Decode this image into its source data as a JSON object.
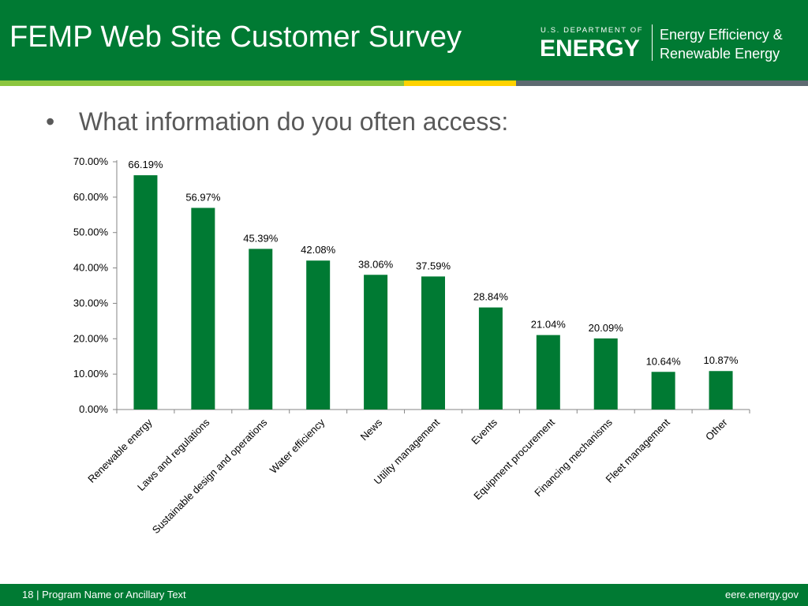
{
  "header": {
    "title": "FEMP Web Site Customer Survey",
    "logo_top_text": "U.S. DEPARTMENT OF",
    "logo_main_text": "ENERGY",
    "office_line1": "Energy Efficiency &",
    "office_line2": "Renewable Energy"
  },
  "slide": {
    "bullet_symbol": "•",
    "bullet_text": "What information do you often access:"
  },
  "footer": {
    "page_number": "18",
    "separator": "|",
    "left_text": "Program Name or Ancillary Text",
    "right_text": "eere.energy.gov"
  },
  "colors": {
    "brand_green": "#007a33",
    "bar_green": "#007a33",
    "stripe_lime": "#8cc63f",
    "stripe_yellow": "#ffd200",
    "stripe_gray": "#5e6a71"
  },
  "chart_data": {
    "type": "bar",
    "categories": [
      "Renewable energy",
      "Laws and regulations",
      "Sustainable design and operations",
      "Water efficiency",
      "News",
      "Utility management",
      "Events",
      "Equipment procurement",
      "Financing mechanisms",
      "Fleet management",
      "Other"
    ],
    "values": [
      66.19,
      56.97,
      45.39,
      42.08,
      38.06,
      37.59,
      28.84,
      21.04,
      20.09,
      10.64,
      10.87
    ],
    "value_labels": [
      "66.19%",
      "56.97%",
      "45.39%",
      "42.08%",
      "38.06%",
      "37.59%",
      "28.84%",
      "21.04%",
      "20.09%",
      "10.64%",
      "10.87%"
    ],
    "yticks": [
      0,
      10,
      20,
      30,
      40,
      50,
      60,
      70
    ],
    "ytick_labels": [
      "0.00%",
      "10.00%",
      "20.00%",
      "30.00%",
      "40.00%",
      "50.00%",
      "60.00%",
      "70.00%"
    ],
    "ylim": [
      0,
      70
    ],
    "title": "",
    "xlabel": "",
    "ylabel": "",
    "grid": false,
    "legend": "none"
  }
}
